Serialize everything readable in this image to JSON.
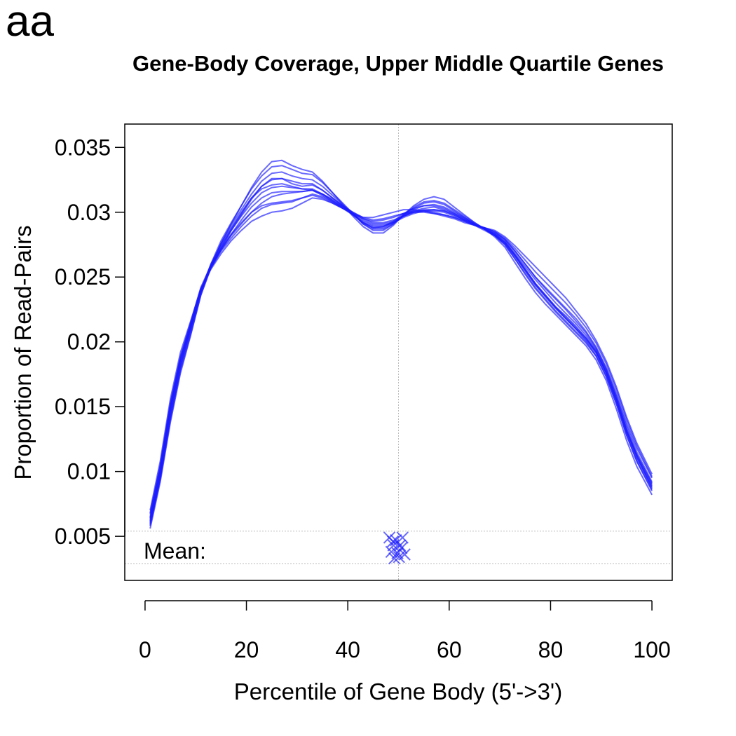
{
  "panel_label": "aa",
  "chart_data": {
    "type": "line",
    "title": "Gene-Body Coverage, Upper Middle Quartile Genes",
    "xlabel": "Percentile of Gene Body (5'->3')",
    "ylabel": "Proportion of Read-Pairs",
    "xlim": [
      -4,
      104
    ],
    "ylim": [
      0.0016,
      0.0368
    ],
    "x_ticks": [
      0,
      20,
      40,
      60,
      80,
      100
    ],
    "y_ticks": [
      0.005,
      0.01,
      0.015,
      0.02,
      0.025,
      0.03,
      0.035
    ],
    "y_tick_labels": [
      "0.005",
      "0.01",
      "0.015",
      "0.02",
      "0.025",
      "0.03",
      "0.035"
    ],
    "reference_line_x": 50,
    "mean_band": [
      0.0029,
      0.0054
    ],
    "mean_label": "Mean:",
    "line_color": "#1a1aff",
    "x": [
      1,
      3,
      5,
      7,
      9,
      11,
      13,
      15,
      17,
      19,
      21,
      23,
      25,
      27,
      29,
      31,
      33,
      35,
      37,
      39,
      41,
      43,
      45,
      47,
      49,
      51,
      53,
      55,
      57,
      59,
      61,
      63,
      65,
      67,
      69,
      71,
      73,
      75,
      77,
      79,
      81,
      83,
      85,
      87,
      89,
      91,
      93,
      95,
      97,
      100
    ],
    "series": [
      {
        "values": [
          0.0063,
          0.01,
          0.0148,
          0.0185,
          0.0212,
          0.024,
          0.026,
          0.0275,
          0.0288,
          0.03,
          0.0311,
          0.0318,
          0.0321,
          0.0322,
          0.032,
          0.0318,
          0.0317,
          0.0313,
          0.0308,
          0.0303,
          0.0298,
          0.0293,
          0.029,
          0.029,
          0.0292,
          0.0296,
          0.0299,
          0.0301,
          0.0302,
          0.0301,
          0.0298,
          0.0294,
          0.029,
          0.0286,
          0.0282,
          0.0276,
          0.0266,
          0.0255,
          0.0244,
          0.0235,
          0.0226,
          0.0218,
          0.021,
          0.0202,
          0.0192,
          0.0176,
          0.0155,
          0.0131,
          0.0113,
          0.009
        ]
      },
      {
        "values": [
          0.0058,
          0.0094,
          0.014,
          0.0178,
          0.0206,
          0.0236,
          0.0257,
          0.0272,
          0.0286,
          0.0298,
          0.031,
          0.032,
          0.0326,
          0.0326,
          0.0322,
          0.032,
          0.0321,
          0.0317,
          0.0311,
          0.0305,
          0.0299,
          0.0292,
          0.0288,
          0.0289,
          0.0293,
          0.0299,
          0.0303,
          0.0305,
          0.0305,
          0.0303,
          0.0299,
          0.0295,
          0.0291,
          0.0287,
          0.0283,
          0.0277,
          0.0267,
          0.0256,
          0.0245,
          0.0236,
          0.0227,
          0.0219,
          0.0211,
          0.0203,
          0.0193,
          0.0177,
          0.0156,
          0.0132,
          0.0112,
          0.0087
        ]
      },
      {
        "values": [
          0.0067,
          0.0105,
          0.0153,
          0.0189,
          0.0215,
          0.0242,
          0.0259,
          0.0272,
          0.0283,
          0.0292,
          0.03,
          0.0305,
          0.0307,
          0.0308,
          0.0309,
          0.0311,
          0.0314,
          0.0312,
          0.0308,
          0.0304,
          0.03,
          0.0296,
          0.0294,
          0.0295,
          0.0297,
          0.0299,
          0.03,
          0.03,
          0.0299,
          0.0298,
          0.0296,
          0.0293,
          0.029,
          0.0288,
          0.0285,
          0.0279,
          0.027,
          0.026,
          0.025,
          0.0242,
          0.0234,
          0.0226,
          0.0218,
          0.0208,
          0.0196,
          0.018,
          0.016,
          0.0137,
          0.0118,
          0.0095
        ]
      },
      {
        "values": [
          0.006,
          0.0096,
          0.0143,
          0.0181,
          0.021,
          0.0239,
          0.026,
          0.0278,
          0.0292,
          0.0305,
          0.0318,
          0.0328,
          0.0335,
          0.0336,
          0.0333,
          0.033,
          0.0329,
          0.0323,
          0.0315,
          0.0307,
          0.0299,
          0.0291,
          0.0286,
          0.0286,
          0.0291,
          0.0298,
          0.0304,
          0.0308,
          0.0309,
          0.0307,
          0.0302,
          0.0297,
          0.0292,
          0.0287,
          0.0282,
          0.0275,
          0.0264,
          0.0252,
          0.0241,
          0.0232,
          0.0223,
          0.0215,
          0.0207,
          0.0199,
          0.0189,
          0.0173,
          0.0152,
          0.0128,
          0.0108,
          0.0085
        ]
      },
      {
        "values": [
          0.007,
          0.0108,
          0.0156,
          0.0192,
          0.0216,
          0.0241,
          0.0256,
          0.0268,
          0.0278,
          0.0286,
          0.0293,
          0.0297,
          0.03,
          0.0301,
          0.0303,
          0.0307,
          0.0311,
          0.031,
          0.0307,
          0.0303,
          0.0299,
          0.0296,
          0.0296,
          0.0298,
          0.03,
          0.0302,
          0.0302,
          0.0301,
          0.0299,
          0.0297,
          0.0295,
          0.0292,
          0.029,
          0.0288,
          0.0286,
          0.0281,
          0.0274,
          0.0266,
          0.0258,
          0.025,
          0.0242,
          0.0234,
          0.0224,
          0.0214,
          0.0201,
          0.0185,
          0.0165,
          0.0142,
          0.0122,
          0.0098
        ]
      },
      {
        "values": [
          0.0062,
          0.0099,
          0.0147,
          0.0184,
          0.0211,
          0.0239,
          0.0258,
          0.0273,
          0.0286,
          0.0297,
          0.0307,
          0.0315,
          0.0319,
          0.032,
          0.0319,
          0.0318,
          0.0318,
          0.0314,
          0.0309,
          0.0304,
          0.0298,
          0.0292,
          0.0289,
          0.0289,
          0.0292,
          0.0297,
          0.0301,
          0.0303,
          0.0304,
          0.0302,
          0.0299,
          0.0295,
          0.0291,
          0.0287,
          0.0283,
          0.0277,
          0.0267,
          0.0256,
          0.0245,
          0.0236,
          0.0227,
          0.022,
          0.0212,
          0.0203,
          0.0192,
          0.0176,
          0.0155,
          0.0131,
          0.0111,
          0.0089
        ]
      },
      {
        "values": [
          0.0065,
          0.0102,
          0.015,
          0.0187,
          0.0213,
          0.024,
          0.0258,
          0.0271,
          0.0282,
          0.0291,
          0.03,
          0.0307,
          0.0312,
          0.0314,
          0.0315,
          0.0316,
          0.0317,
          0.0314,
          0.031,
          0.0305,
          0.03,
          0.0295,
          0.0292,
          0.0292,
          0.0294,
          0.0297,
          0.03,
          0.0301,
          0.0301,
          0.03,
          0.0297,
          0.0294,
          0.0291,
          0.0288,
          0.0284,
          0.0279,
          0.027,
          0.026,
          0.025,
          0.0241,
          0.0233,
          0.0225,
          0.0216,
          0.0207,
          0.0195,
          0.0179,
          0.0158,
          0.0135,
          0.0115,
          0.0092
        ]
      },
      {
        "values": [
          0.0056,
          0.0092,
          0.0138,
          0.0176,
          0.0205,
          0.0236,
          0.0258,
          0.0276,
          0.0291,
          0.0305,
          0.0319,
          0.0331,
          0.0339,
          0.034,
          0.0336,
          0.0333,
          0.0331,
          0.0324,
          0.0315,
          0.0306,
          0.0297,
          0.0289,
          0.0284,
          0.0284,
          0.029,
          0.0298,
          0.0305,
          0.031,
          0.0312,
          0.031,
          0.0304,
          0.0298,
          0.0292,
          0.0287,
          0.0281,
          0.0273,
          0.0261,
          0.0249,
          0.0238,
          0.0229,
          0.0221,
          0.0213,
          0.0205,
          0.0197,
          0.0186,
          0.017,
          0.0148,
          0.0124,
          0.0104,
          0.0082
        ]
      },
      {
        "values": [
          0.0068,
          0.0104,
          0.0152,
          0.0188,
          0.0214,
          0.0241,
          0.0257,
          0.027,
          0.028,
          0.0289,
          0.0297,
          0.0303,
          0.0306,
          0.0307,
          0.0308,
          0.0311,
          0.0313,
          0.0311,
          0.0307,
          0.0303,
          0.0299,
          0.0295,
          0.0293,
          0.0294,
          0.0296,
          0.0299,
          0.0301,
          0.0301,
          0.03,
          0.0298,
          0.0296,
          0.0293,
          0.029,
          0.0288,
          0.0285,
          0.028,
          0.0272,
          0.0263,
          0.0254,
          0.0246,
          0.0238,
          0.023,
          0.0221,
          0.0211,
          0.0199,
          0.0183,
          0.0163,
          0.014,
          0.012,
          0.0096
        ]
      },
      {
        "values": [
          0.0061,
          0.0097,
          0.0145,
          0.0182,
          0.021,
          0.0238,
          0.0258,
          0.0274,
          0.0287,
          0.0299,
          0.0311,
          0.032,
          0.0325,
          0.0326,
          0.0324,
          0.0322,
          0.0322,
          0.0317,
          0.0311,
          0.0305,
          0.0298,
          0.0292,
          0.0288,
          0.0288,
          0.0292,
          0.0297,
          0.0302,
          0.0305,
          0.0306,
          0.0304,
          0.03,
          0.0296,
          0.0291,
          0.0287,
          0.0283,
          0.0276,
          0.0266,
          0.0255,
          0.0244,
          0.0235,
          0.0226,
          0.0218,
          0.021,
          0.0201,
          0.0191,
          0.0175,
          0.0154,
          0.013,
          0.011,
          0.0088
        ]
      },
      {
        "values": [
          0.0064,
          0.0101,
          0.0149,
          0.0186,
          0.0212,
          0.0239,
          0.0257,
          0.0271,
          0.0283,
          0.0294,
          0.0304,
          0.0311,
          0.0315,
          0.0316,
          0.0316,
          0.0316,
          0.0317,
          0.0314,
          0.0309,
          0.0304,
          0.0299,
          0.0294,
          0.0291,
          0.0291,
          0.0293,
          0.0297,
          0.03,
          0.0302,
          0.0302,
          0.0301,
          0.0298,
          0.0294,
          0.029,
          0.0287,
          0.0284,
          0.0278,
          0.0268,
          0.0258,
          0.0248,
          0.0239,
          0.023,
          0.0222,
          0.0214,
          0.0205,
          0.0194,
          0.0178,
          0.0157,
          0.0133,
          0.0113,
          0.0091
        ]
      },
      {
        "values": [
          0.0059,
          0.0095,
          0.0142,
          0.018,
          0.0208,
          0.0238,
          0.0259,
          0.0276,
          0.029,
          0.0302,
          0.0314,
          0.0324,
          0.033,
          0.0331,
          0.0328,
          0.0326,
          0.0325,
          0.032,
          0.0313,
          0.0306,
          0.0299,
          0.0291,
          0.0287,
          0.0287,
          0.0291,
          0.0298,
          0.0303,
          0.0307,
          0.0308,
          0.0306,
          0.0301,
          0.0296,
          0.0291,
          0.0287,
          0.0282,
          0.0275,
          0.0264,
          0.0253,
          0.0242,
          0.0233,
          0.0224,
          0.0216,
          0.0208,
          0.02,
          0.0189,
          0.0173,
          0.0152,
          0.0128,
          0.0108,
          0.0086
        ]
      }
    ],
    "mean_markers": [
      {
        "x": 48.2,
        "y": 0.0049
      },
      {
        "x": 49.5,
        "y": 0.0047
      },
      {
        "x": 50.8,
        "y": 0.0049
      },
      {
        "x": 49.0,
        "y": 0.0043
      },
      {
        "x": 50.3,
        "y": 0.0043
      },
      {
        "x": 48.6,
        "y": 0.0038
      },
      {
        "x": 49.8,
        "y": 0.0037
      },
      {
        "x": 51.2,
        "y": 0.0036
      },
      {
        "x": 49.2,
        "y": 0.0033
      },
      {
        "x": 50.1,
        "y": 0.0034
      },
      {
        "x": 48.9,
        "y": 0.0046
      },
      {
        "x": 50.6,
        "y": 0.0041
      }
    ]
  }
}
